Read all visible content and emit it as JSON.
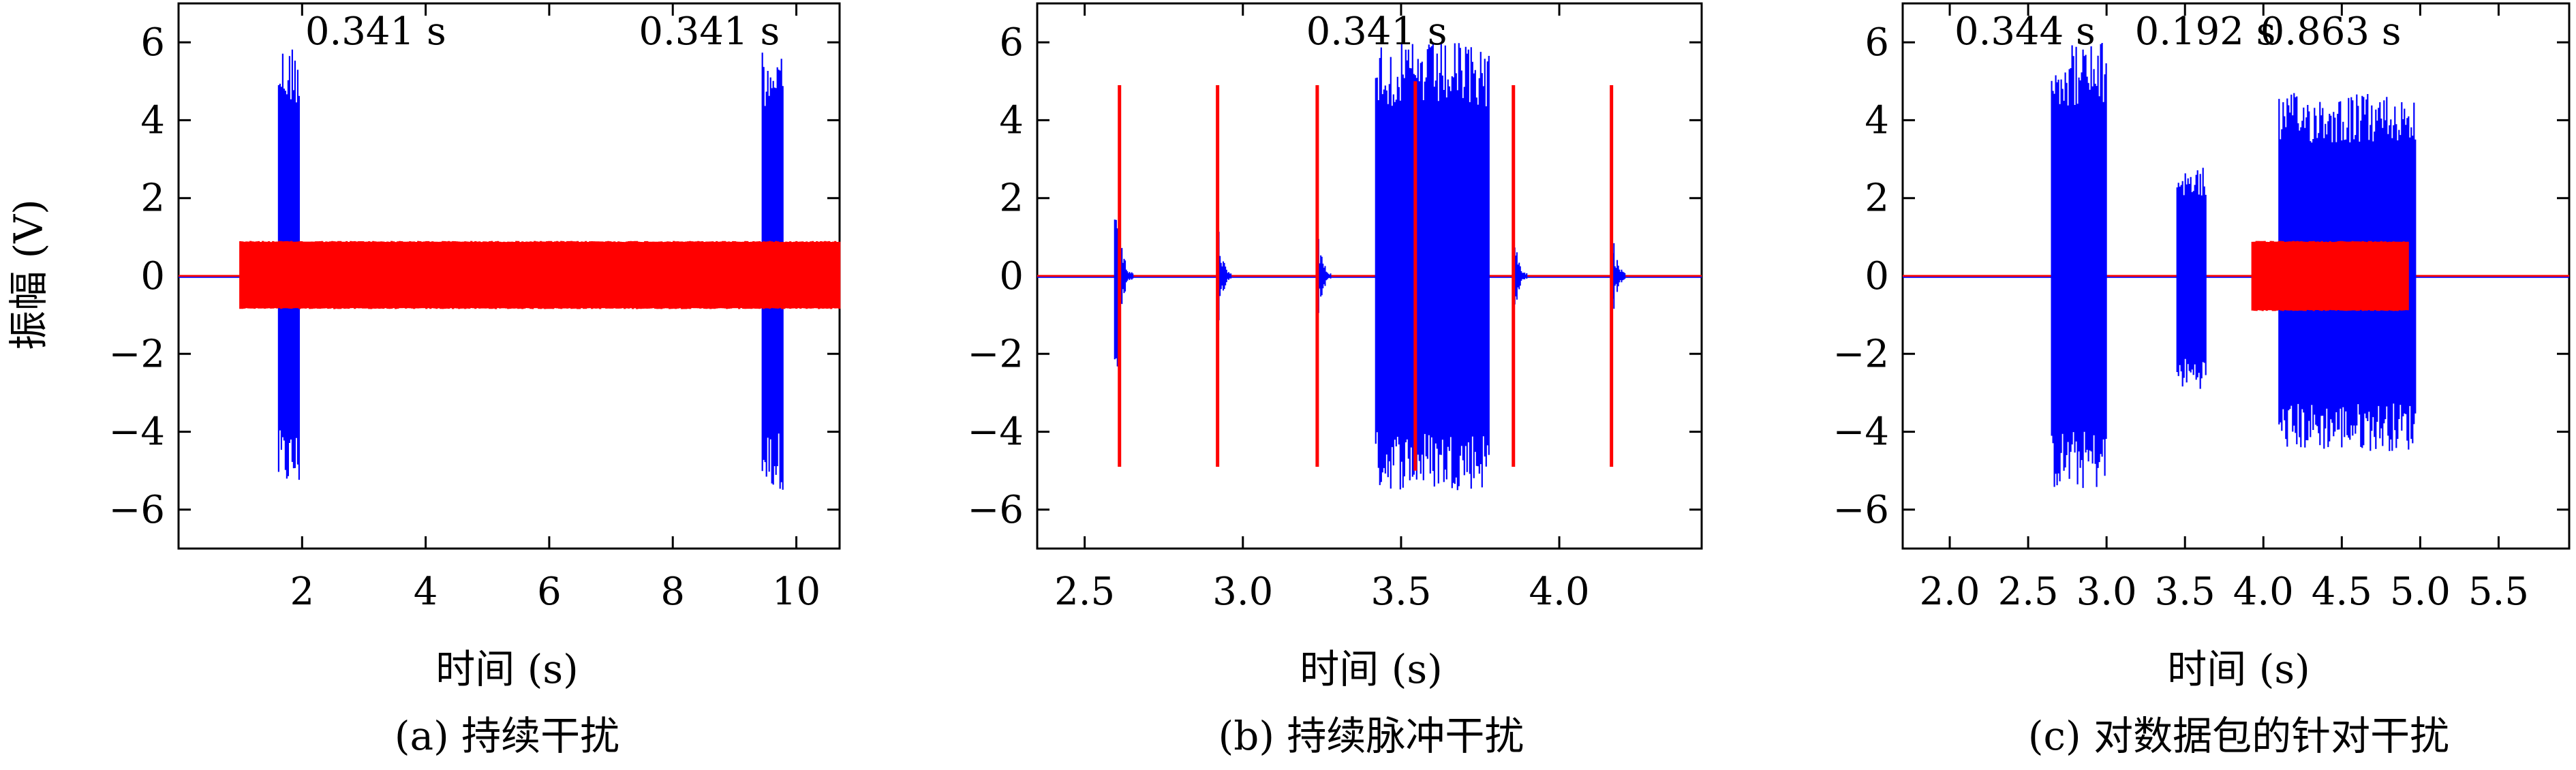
{
  "figure": {
    "y_axis_title": "振幅 (V)",
    "colors": {
      "interference": "#ff0000",
      "signal": "#0000ff",
      "axis": "#000000"
    }
  },
  "chart_data": [
    {
      "type": "line",
      "caption": "(a) 持续干扰",
      "xlabel": "时间 (s)",
      "ylabel": "振幅 (V)",
      "xlim": [
        0.0,
        10.7
      ],
      "ylim": [
        -7,
        7
      ],
      "x_ticks": [
        2,
        4,
        6,
        8,
        10
      ],
      "x_tick_labels": [
        "2",
        "4",
        "6",
        "8",
        "10"
      ],
      "y_ticks": [
        -6,
        -4,
        -2,
        0,
        2,
        4,
        6
      ],
      "y_tick_labels": [
        "−6",
        "−4",
        "−2",
        "0",
        "2",
        "4",
        "6"
      ],
      "annotations": [
        {
          "text": "0.341 s",
          "x": 2.05
        },
        {
          "text": "0.341 s",
          "x": 7.45
        }
      ],
      "series": [
        {
          "color": "#0000ff",
          "bursts": [
            {
              "start": 1.62,
              "end": 1.96,
              "amp_pos": 6.0,
              "amp_neg": 5.5
            },
            {
              "start": 9.45,
              "end": 9.79,
              "amp_pos": 6.0,
              "amp_neg": 5.5
            }
          ]
        },
        {
          "color": "#ff0000",
          "bursts": [
            {
              "start": 1.0,
              "end": 10.7,
              "amp_pos": 0.9,
              "amp_neg": 0.85
            }
          ]
        }
      ]
    },
    {
      "type": "line",
      "caption": "(b) 持续脉冲干扰",
      "xlabel": "时间 (s)",
      "ylabel": "",
      "xlim": [
        2.35,
        4.45
      ],
      "ylim": [
        -7,
        7
      ],
      "x_ticks": [
        2.5,
        3.0,
        3.5,
        4.0
      ],
      "x_tick_labels": [
        "2.5",
        "3.0",
        "3.5",
        "4.0"
      ],
      "y_ticks": [
        -6,
        -4,
        -2,
        0,
        2,
        4,
        6
      ],
      "y_tick_labels": [
        "−6",
        "−4",
        "−2",
        "0",
        "2",
        "4",
        "6"
      ],
      "annotations": [
        {
          "text": "0.341 s",
          "x": 3.2
        }
      ],
      "series": [
        {
          "color": "#0000ff",
          "bursts": [
            {
              "start": 2.595,
              "end": 2.615,
              "amp_pos": 1.6,
              "amp_neg": 2.4
            },
            {
              "start": 3.42,
              "end": 3.78,
              "amp_pos": 6.0,
              "amp_neg": 5.5
            }
          ]
        },
        {
          "color": "#ff0000",
          "spikes": [
            {
              "x": 2.61,
              "amp": 4.9
            },
            {
              "x": 2.92,
              "amp": 4.9
            },
            {
              "x": 3.235,
              "amp": 4.9
            },
            {
              "x": 3.545,
              "amp": 5.0
            },
            {
              "x": 3.855,
              "amp": 4.9
            },
            {
              "x": 4.165,
              "amp": 4.9
            }
          ]
        }
      ]
    },
    {
      "type": "line",
      "caption": "(c) 对数据包的针对干扰",
      "xlabel": "时间 (s)",
      "ylabel": "",
      "xlim": [
        1.7,
        5.95
      ],
      "ylim": [
        -7,
        7
      ],
      "x_ticks": [
        2.0,
        2.5,
        3.0,
        3.5,
        4.0,
        4.5,
        5.0,
        5.5
      ],
      "x_tick_labels": [
        "2.0",
        "2.5",
        "3.0",
        "3.5",
        "4.0",
        "4.5",
        "5.0",
        "5.5"
      ],
      "y_ticks": [
        -6,
        -4,
        -2,
        0,
        2,
        4,
        6
      ],
      "y_tick_labels": [
        "−6",
        "−4",
        "−2",
        "0",
        "2",
        "4",
        "6"
      ],
      "annotations": [
        {
          "text": "0.344 s",
          "x": 2.03
        },
        {
          "text": "0.192 s",
          "x": 3.18
        },
        {
          "text": "0.863 s",
          "x": 3.98
        }
      ],
      "series": [
        {
          "color": "#0000ff",
          "bursts": [
            {
              "start": 2.65,
              "end": 3.0,
              "amp_pos": 6.0,
              "amp_neg": 5.5
            },
            {
              "start": 3.45,
              "end": 3.64,
              "amp_pos": 2.8,
              "amp_neg": 2.9
            },
            {
              "start": 4.1,
              "end": 4.97,
              "amp_pos": 4.7,
              "amp_neg": 4.5
            }
          ]
        },
        {
          "color": "#ff0000",
          "bursts": [
            {
              "start": 3.93,
              "end": 4.93,
              "amp_pos": 0.9,
              "amp_neg": 0.9
            }
          ]
        }
      ]
    }
  ]
}
